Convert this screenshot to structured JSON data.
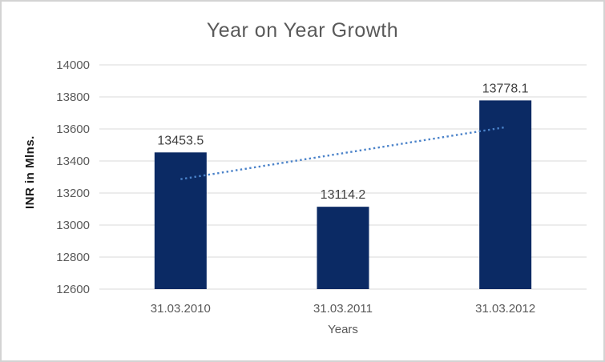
{
  "chart_data": {
    "type": "bar",
    "title": "Year on Year Growth",
    "categories": [
      "31.03.2010",
      "31.03.2011",
      "31.03.2012"
    ],
    "values": [
      13453.5,
      13114.2,
      13778.1
    ],
    "data_labels": [
      "13453.5",
      "13114.2",
      "13778.1"
    ],
    "xlabel": "Years",
    "ylabel": "INR in Mlns.",
    "ylim": [
      12600,
      14000
    ],
    "yticks": [
      12600,
      12800,
      13000,
      13200,
      13400,
      13600,
      13800,
      14000
    ],
    "grid": "horizontal-only",
    "legend": "none",
    "trendline": {
      "type": "linear",
      "style": "dotted",
      "start_value": 13286.3,
      "end_value": 13610.9
    },
    "colors": {
      "bar": "#0b2a64",
      "trendline_blue": "#4a82c9",
      "gridline": "#d9d9d9",
      "tick_text": "#595959",
      "title_text": "#595959",
      "data_label_text": "#3f3f3f",
      "axis_title_text": "#1a1a1a",
      "frame_border": "#d3d3d3"
    }
  }
}
